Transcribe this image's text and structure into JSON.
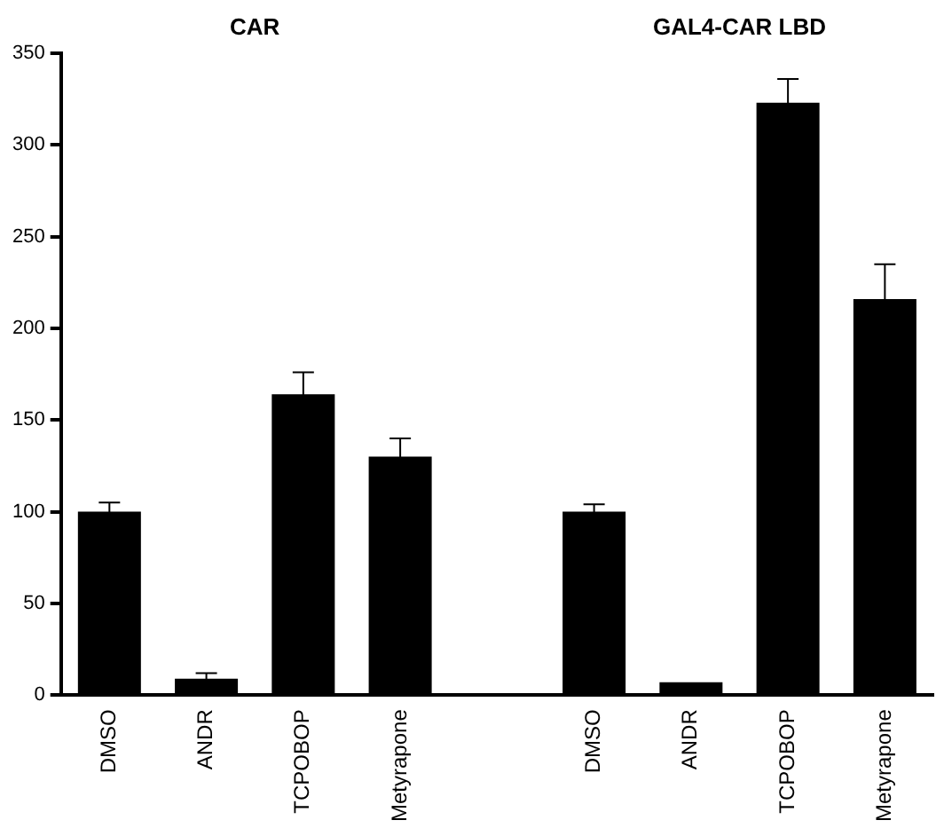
{
  "chart_data": {
    "type": "bar",
    "categories": [
      "DMSO",
      "ANDR",
      "TCPOBOP",
      "Metyrapone",
      null,
      "DMSO",
      "ANDR",
      "TCPOBOP",
      "Metyrapone"
    ],
    "values": [
      100,
      9,
      164,
      130,
      null,
      100,
      7,
      323,
      216
    ],
    "errors": [
      5,
      3,
      12,
      10,
      null,
      4,
      null,
      13,
      19
    ],
    "color": "#000000",
    "ylim": [
      0,
      350
    ],
    "yticks": [
      0,
      50,
      100,
      150,
      200,
      250,
      300,
      350
    ],
    "annotations": [
      "CAR",
      "GAL4-CAR LBD"
    ]
  }
}
